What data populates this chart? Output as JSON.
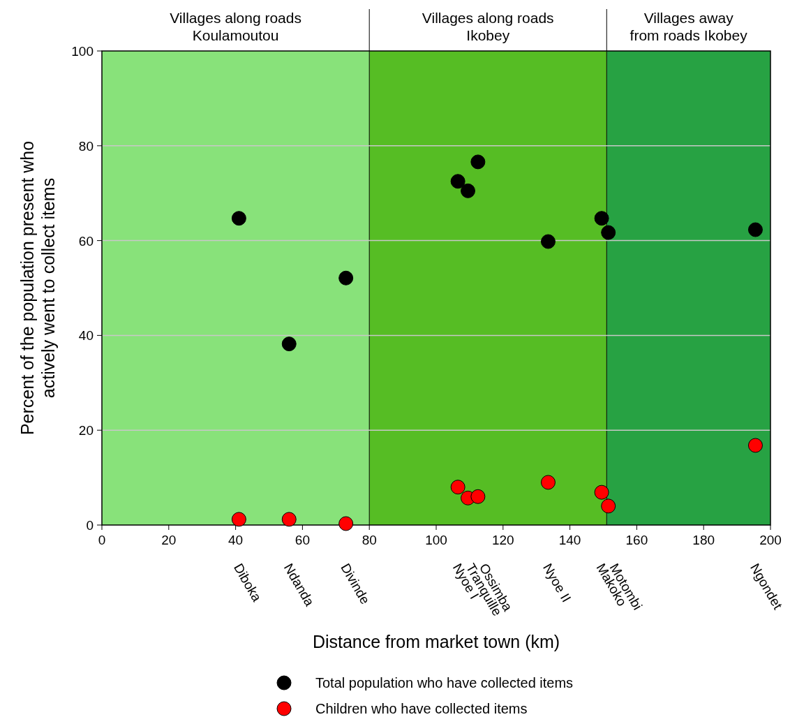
{
  "chart_data": {
    "type": "scatter",
    "xlabel": "Distance from market town (km)",
    "ylabel": "Percent of the population present who\nactively went to collect items",
    "xlim": [
      0,
      200
    ],
    "xticks": [
      0,
      20,
      40,
      60,
      80,
      100,
      120,
      140,
      160,
      180,
      200
    ],
    "ylim": [
      0,
      100
    ],
    "yticks": [
      0,
      20,
      40,
      60,
      80,
      100
    ],
    "grid": "y",
    "legend": "bottom",
    "marker": "circle",
    "series": [
      {
        "name": "Total population who have collected items",
        "color": "#000000",
        "x": [
          41,
          56,
          73,
          106.5,
          109.5,
          112.5,
          133.5,
          149.5,
          151.5,
          195.5
        ],
        "values": [
          64.7,
          38.2,
          52.1,
          72.5,
          70.5,
          76.6,
          59.8,
          64.7,
          61.7,
          62.3
        ]
      },
      {
        "name": "Children who have collected items",
        "color": "#ff0000",
        "x": [
          41,
          56,
          73,
          106.5,
          109.5,
          112.5,
          133.5,
          149.5,
          151.5,
          195.5
        ],
        "values": [
          1.2,
          1.2,
          0.3,
          8,
          5.7,
          6,
          9,
          6.9,
          4,
          16.8
        ]
      }
    ],
    "bands": [
      {
        "axis": "x",
        "from": 0,
        "to": 80,
        "label": "Villages along roads\nKoulamoutou",
        "color": "#88e27a"
      },
      {
        "axis": "x",
        "from": 80,
        "to": 151,
        "label": "Villages along roads\nIkobey",
        "color": "#56bd24"
      },
      {
        "axis": "x",
        "from": 151,
        "to": 200,
        "label": "Villages away\nfrom roads Ikobey",
        "color": "#27a243"
      }
    ],
    "ref_lines": [
      {
        "axis": "x",
        "value": 80,
        "color": "#000000"
      },
      {
        "axis": "x",
        "value": 151,
        "color": "#000000"
      }
    ],
    "annotations": [
      "Diboka",
      "Ndanda",
      "Divinde",
      "Nyoe I",
      "Tranquille",
      "Ossimba",
      "Nyoe II",
      "Makoko",
      "Motombi",
      "Ngondet"
    ]
  }
}
